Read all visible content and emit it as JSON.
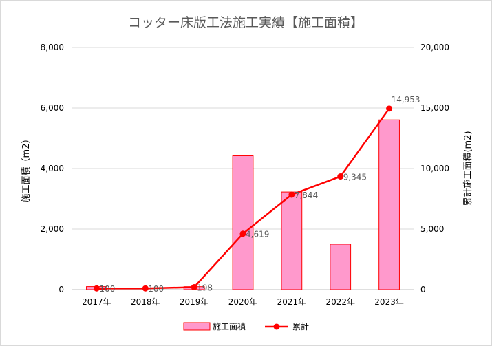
{
  "chart_data": {
    "type": "bar+line",
    "title": "コッター床版工法施工実績【施工面積】",
    "categories": [
      "2017年",
      "2018年",
      "2019年",
      "2020年",
      "2021年",
      "2022年",
      "2023年"
    ],
    "series": [
      {
        "name": "施工面積",
        "type": "bar",
        "axis": "left",
        "values": [
          100,
          0,
          98,
          4421,
          3225,
          1501,
          5608
        ],
        "color": "#ff99cc",
        "edge_color": "#ff0000"
      },
      {
        "name": "累計",
        "type": "line",
        "axis": "right",
        "values": [
          100,
          100,
          198,
          4619,
          7844,
          9345,
          14953
        ],
        "labels": [
          "100",
          "100",
          "198",
          "4,619",
          "7,844",
          "9,345",
          "14,953"
        ],
        "color": "#ff0000"
      }
    ],
    "y_left": {
      "label": "施工面積（m2）",
      "range": [
        0,
        8000
      ],
      "ticks": [
        0,
        2000,
        4000,
        6000,
        8000
      ],
      "tick_labels": [
        "0",
        "2,000",
        "4,000",
        "6,000",
        "8,000"
      ]
    },
    "y_right": {
      "label": "累計施工面積(m2)",
      "range": [
        0,
        20000
      ],
      "ticks": [
        0,
        5000,
        10000,
        15000,
        20000
      ],
      "tick_labels": [
        "0",
        "5,000",
        "10,000",
        "15,000",
        "20,000"
      ]
    },
    "grid": true,
    "legend": "bottom"
  }
}
